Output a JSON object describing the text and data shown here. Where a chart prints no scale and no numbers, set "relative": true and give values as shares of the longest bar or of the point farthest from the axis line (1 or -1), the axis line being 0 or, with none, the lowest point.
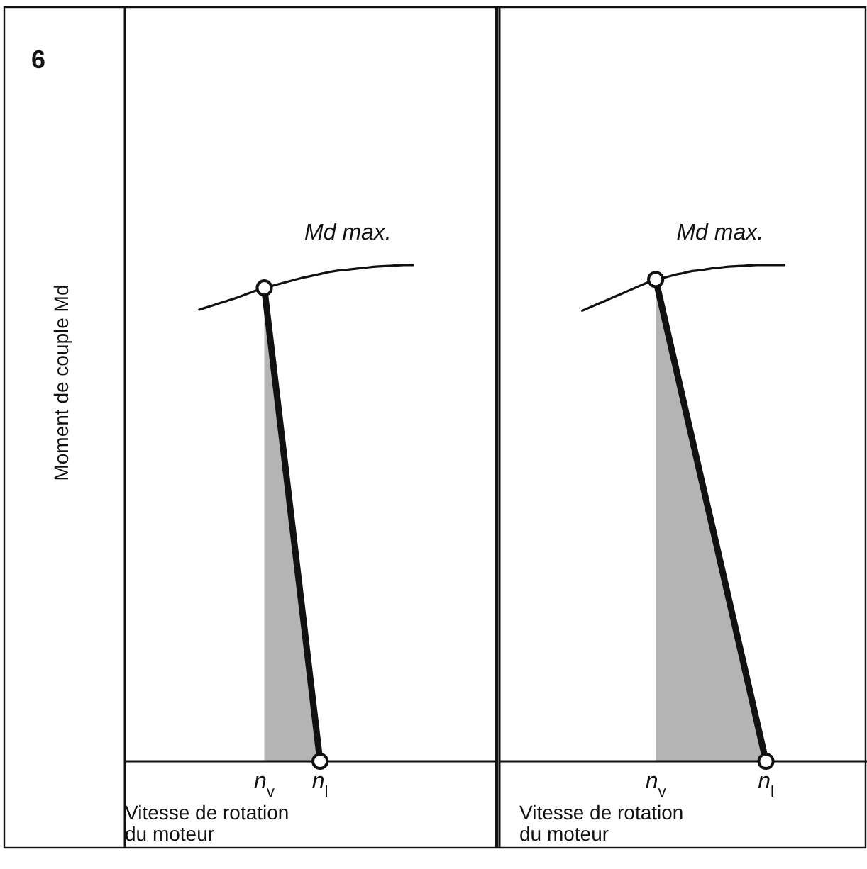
{
  "chart_data": [
    {
      "type": "line",
      "relative": true,
      "ylabel": "Moment de couple Md",
      "xlabel": "Vitesse de rotation du moteur",
      "annotations": [
        "6",
        "Md max."
      ],
      "tick_labels": "x",
      "categories": [
        null,
        null,
        null,
        null,
        null,
        null,
        null,
        null,
        null,
        null,
        null,
        null,
        null,
        null,
        null,
        "n$_{v}$",
        null,
        null,
        null,
        null,
        null,
        "n$_{l}$",
        null,
        null,
        null,
        null,
        null,
        null,
        null,
        null,
        null,
        null,
        null,
        null,
        null,
        null,
        null,
        null,
        null,
        null,
        null
      ],
      "series": [
        {
          "type": "line",
          "color": "#111111",
          "values": [
            null,
            null,
            null,
            null,
            null,
            null,
            null,
            null,
            0.91,
            0.916,
            0.922,
            0.928,
            0.934,
            0.941,
            0.948,
            0.954,
            0.959,
            0.964,
            0.969,
            0.974,
            0.978,
            0.982,
            0.986,
            0.989,
            0.991,
            0.993,
            0.995,
            0.997,
            0.998,
            0.999,
            1,
            1,
            null,
            null,
            null,
            null,
            null,
            null,
            null,
            null,
            null
          ]
        },
        {
          "type": "area",
          "color": "#b4b4b4",
          "values": [
            null,
            null,
            null,
            null,
            null,
            null,
            null,
            null,
            null,
            null,
            null,
            null,
            null,
            null,
            null,
            0.954,
            0.795,
            0.636,
            0.477,
            0.318,
            0.159,
            0,
            null,
            null,
            null,
            null,
            null,
            null,
            null,
            null,
            null,
            null,
            null,
            null,
            null,
            null,
            null,
            null,
            null,
            null,
            null
          ]
        },
        {
          "type": "scatter",
          "color": "#111111",
          "marker": "circle",
          "values": [
            null,
            null,
            null,
            null,
            null,
            null,
            null,
            null,
            null,
            null,
            null,
            null,
            null,
            null,
            null,
            0.954,
            null,
            null,
            null,
            null,
            null,
            0,
            null,
            null,
            null,
            null,
            null,
            null,
            null,
            null,
            null,
            null,
            null,
            null,
            null,
            null,
            null,
            null,
            null,
            null,
            null
          ]
        }
      ]
    },
    {
      "type": "line",
      "relative": true,
      "xlabel": "Vitesse de rotation du moteur",
      "annotations": [
        "Md max."
      ],
      "tick_labels": "x",
      "categories": [
        null,
        null,
        null,
        null,
        null,
        null,
        null,
        null,
        null,
        null,
        null,
        null,
        null,
        null,
        null,
        null,
        null,
        "n$_{v}$",
        null,
        null,
        null,
        null,
        null,
        null,
        null,
        null,
        null,
        null,
        null,
        "n$_{l}$",
        null,
        null,
        null,
        null,
        null,
        null,
        null,
        null,
        null,
        null,
        null
      ],
      "series": [
        {
          "type": "line",
          "color": "#111111",
          "values": [
            null,
            null,
            null,
            null,
            null,
            null,
            null,
            null,
            null,
            0.908,
            0.916,
            0.924,
            0.932,
            0.94,
            0.948,
            0.956,
            0.964,
            0.971,
            0.975,
            0.98,
            0.984,
            0.988,
            0.99,
            0.993,
            0.995,
            0.997,
            0.998,
            0.999,
            1,
            1,
            1,
            1,
            null,
            null,
            null,
            null,
            null,
            null,
            null,
            null,
            null
          ]
        },
        {
          "type": "area",
          "color": "#b4b4b4",
          "values": [
            null,
            null,
            null,
            null,
            null,
            null,
            null,
            null,
            null,
            null,
            null,
            null,
            null,
            null,
            null,
            null,
            null,
            0.971,
            0.89,
            0.809,
            0.728,
            0.647,
            0.566,
            0.486,
            0.405,
            0.324,
            0.243,
            0.162,
            0.081,
            0,
            null,
            null,
            null,
            null,
            null,
            null,
            null,
            null,
            null,
            null,
            null
          ]
        },
        {
          "type": "scatter",
          "color": "#111111",
          "marker": "circle",
          "values": [
            null,
            null,
            null,
            null,
            null,
            null,
            null,
            null,
            null,
            null,
            null,
            null,
            null,
            null,
            null,
            null,
            null,
            0.971,
            null,
            null,
            null,
            null,
            null,
            null,
            null,
            null,
            null,
            null,
            null,
            0,
            null,
            null,
            null,
            null,
            null,
            null,
            null,
            null,
            null,
            null,
            null
          ]
        }
      ]
    }
  ]
}
